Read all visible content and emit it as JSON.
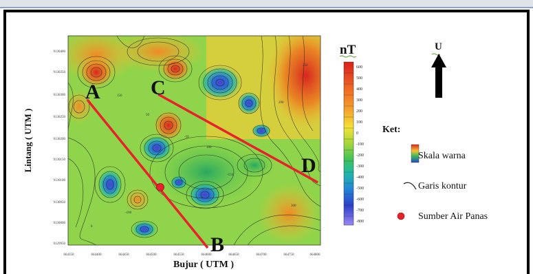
{
  "map": {
    "y_axis_label": "Lintang ( UTM )",
    "x_axis_label": "Bujur ( UTM )",
    "y_ticks": [
      "9130400",
      "9130350",
      "9130300",
      "9130250",
      "9130200",
      "9130150",
      "9130100",
      "9130050",
      "9130000",
      "9129950"
    ],
    "x_ticks": [
      "664350",
      "664400",
      "664450",
      "664500",
      "664550",
      "664600",
      "664650",
      "664700",
      "664750",
      "664800"
    ],
    "line_labels": [
      "A",
      "B",
      "C",
      "D"
    ],
    "contour_labels": [
      "150",
      "50",
      "-50",
      "100",
      "200",
      "-150",
      "-100",
      "300",
      "0",
      "250"
    ],
    "colors": {
      "line": "#e8222a",
      "source": "#e8222a"
    }
  },
  "colorbar": {
    "unit": "nT",
    "ticks": [
      "600",
      "500",
      "400",
      "300",
      "200",
      "100",
      "0",
      "-100",
      "-200",
      "-300",
      "-400",
      "-500",
      "-600",
      "-700",
      "-800"
    ]
  },
  "north_arrow": {
    "label": "U"
  },
  "legend": {
    "title": "Ket:",
    "items": [
      {
        "icon": "color-scale-icon",
        "label": "Skala warna"
      },
      {
        "icon": "contour-line-icon",
        "label": "Garis kontur"
      },
      {
        "icon": "hot-spring-icon",
        "label": "Sumber Air Panas"
      }
    ]
  }
}
